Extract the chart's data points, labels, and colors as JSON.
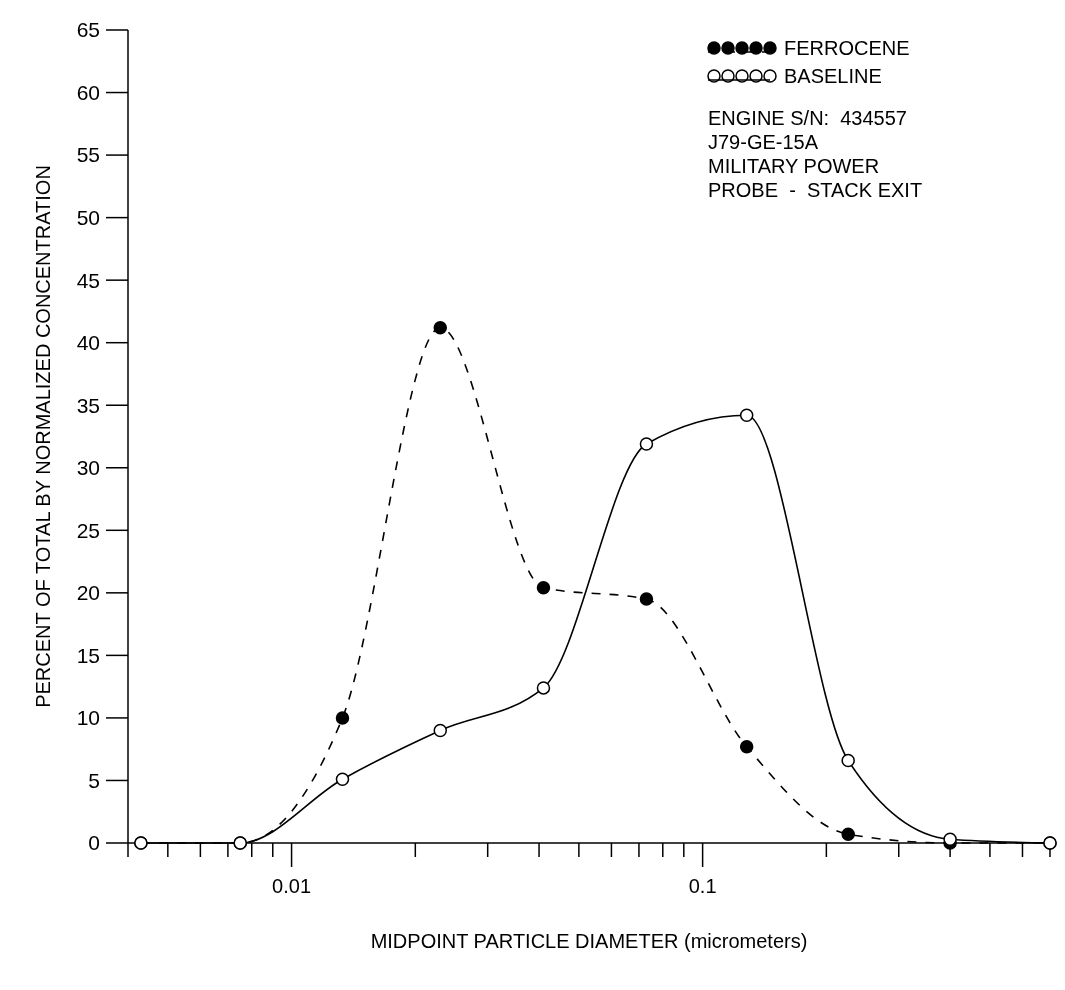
{
  "chart_data": {
    "type": "line",
    "xlabel": "MIDPOINT PARTICLE DIAMETER (micrometers)",
    "ylabel": "PERCENT OF TOTAL BY NORMALIZED CONCENTRATION",
    "x": [
      0.0043,
      0.0075,
      0.0133,
      0.023,
      0.041,
      0.073,
      0.128,
      0.226,
      0.4,
      0.7
    ],
    "series": [
      {
        "name": "FERROCENE",
        "color": "#000000",
        "line_style": "dashed",
        "values": [
          0,
          0,
          10,
          41.2,
          20.4,
          19.5,
          7.7,
          0.7,
          0,
          0
        ]
      },
      {
        "name": "BASELINE",
        "color": "#000000",
        "line_style": "solid",
        "values": [
          0,
          0,
          5.1,
          9,
          12.4,
          31.9,
          34.2,
          6.6,
          0.3,
          0
        ]
      }
    ],
    "log": "x",
    "xlim": [
      0.004,
      0.7
    ],
    "xticks": [
      {
        "value": 0.004,
        "label": null
      },
      {
        "value": 0.005,
        "label": null
      },
      {
        "value": 0.006,
        "label": null
      },
      {
        "value": 0.007,
        "label": null
      },
      {
        "value": 0.008,
        "label": null
      },
      {
        "value": 0.009,
        "label": null
      },
      0.01,
      {
        "value": 0.02,
        "label": null
      },
      {
        "value": 0.03,
        "label": null
      },
      {
        "value": 0.04,
        "label": null
      },
      {
        "value": 0.05,
        "label": null
      },
      {
        "value": 0.06,
        "label": null
      },
      {
        "value": 0.07,
        "label": null
      },
      {
        "value": 0.08,
        "label": null
      },
      {
        "value": 0.09,
        "label": null
      },
      0.1,
      {
        "value": 0.2,
        "label": null
      },
      {
        "value": 0.3,
        "label": null
      },
      {
        "value": 0.4,
        "label": null
      },
      {
        "value": 0.5,
        "label": null
      },
      {
        "value": 0.6,
        "label": null
      },
      {
        "value": 0.7,
        "label": null
      }
    ],
    "ylim": [
      0,
      65
    ],
    "yticks": [
      0,
      5,
      10,
      15,
      20,
      25,
      30,
      35,
      40,
      45,
      50,
      55,
      60,
      65
    ],
    "marker": "circle",
    "grid": false,
    "legend": "top right",
    "annotations": [
      "ENGINE S/N:  434557",
      "J79-GE-15A",
      "MILITARY POWER",
      "PROBE  -  STACK EXIT"
    ]
  }
}
